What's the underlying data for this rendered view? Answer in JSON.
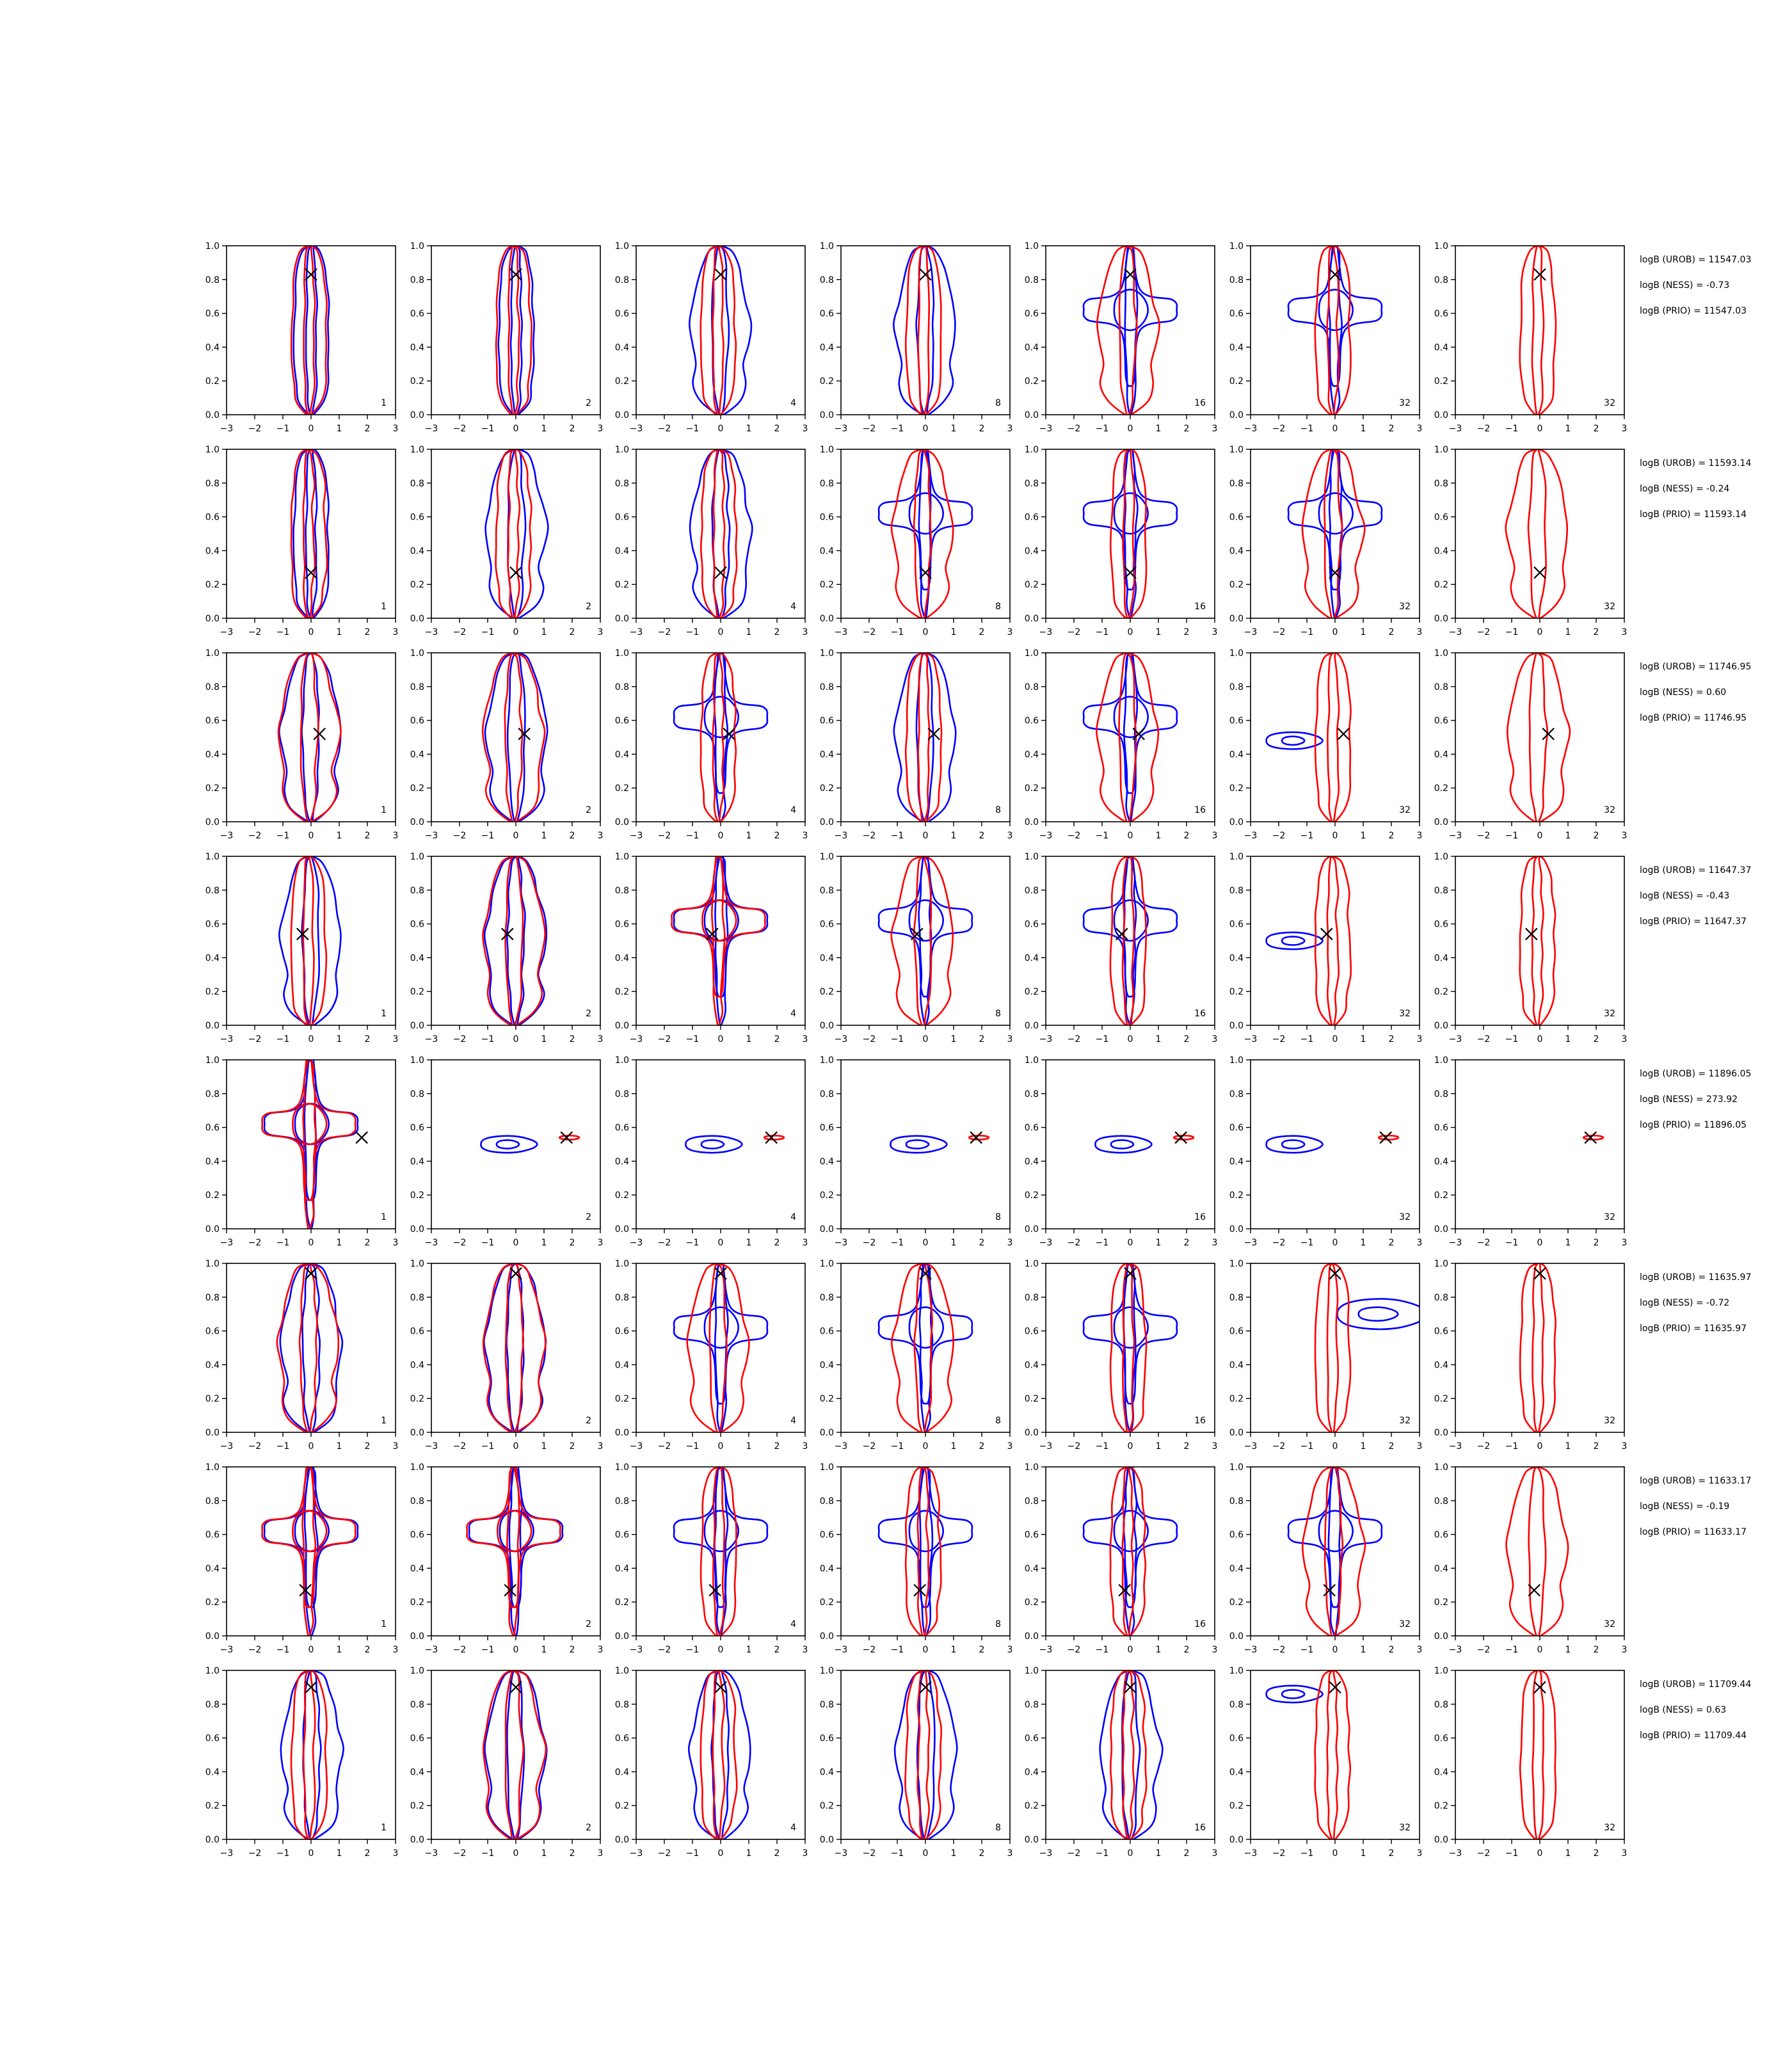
{
  "figure": {
    "xticks": [
      "−3",
      "−2",
      "−1",
      "0",
      "1",
      "2",
      "3"
    ],
    "yticks": [
      "0.0",
      "0.2",
      "0.4",
      "0.6",
      "0.8",
      "1.0"
    ],
    "xlim": [
      -3,
      3
    ],
    "ylim": [
      0,
      1
    ],
    "colors": {
      "series_a": "#0000ff",
      "series_b": "#ff0000",
      "marker": "#000000",
      "axes": "#000000"
    },
    "marker_symbol": "×",
    "panel_labels": [
      "1",
      "2",
      "4",
      "8",
      "16",
      "32",
      "32"
    ]
  },
  "chart_data": {
    "type": "contour",
    "grid": {
      "rows": 8,
      "cols": 7
    },
    "rows": [
      {
        "marker": [
          0.0,
          0.83
        ],
        "stats": [
          "logB (UROB) = 11547.03",
          "logB (NESS) = -0.73",
          "logB (PRIO) = 11547.03"
        ],
        "panels": [
          {
            "label": "1",
            "a": "n",
            "b": "n"
          },
          {
            "label": "2",
            "a": "n",
            "b": "n"
          },
          {
            "label": "4",
            "a": "m",
            "b": "n"
          },
          {
            "label": "8",
            "a": "m",
            "b": "n"
          },
          {
            "label": "16",
            "a": "x",
            "b": "m"
          },
          {
            "label": "32",
            "a": "x",
            "b": "n"
          },
          {
            "label": "32",
            "a": "",
            "b": "n"
          }
        ]
      },
      {
        "marker": [
          0.0,
          0.27
        ],
        "stats": [
          "logB (UROB) = 11593.14",
          "logB (NESS) = -0.24",
          "logB (PRIO) = 11593.14"
        ],
        "panels": [
          {
            "label": "1",
            "a": "n",
            "b": "n"
          },
          {
            "label": "2",
            "a": "m",
            "b": "n"
          },
          {
            "label": "4",
            "a": "m",
            "b": "n"
          },
          {
            "label": "8",
            "a": "x",
            "b": "m"
          },
          {
            "label": "16",
            "a": "x",
            "b": "n"
          },
          {
            "label": "32",
            "a": "x",
            "b": "m"
          },
          {
            "label": "32",
            "a": "",
            "b": "m"
          }
        ]
      },
      {
        "marker": [
          0.3,
          0.52
        ],
        "stats": [
          "logB (UROB) = 11746.95",
          "logB (NESS) = 0.60",
          "logB (PRIO) = 11746.95"
        ],
        "panels": [
          {
            "label": "1",
            "a": "m",
            "b": "m"
          },
          {
            "label": "2",
            "a": "m",
            "b": "m"
          },
          {
            "label": "4",
            "a": "x",
            "b": "n"
          },
          {
            "label": "8",
            "a": "m",
            "b": "n"
          },
          {
            "label": "16",
            "a": "x",
            "b": "m"
          },
          {
            "label": "32",
            "a": "bl",
            "b": "n"
          },
          {
            "label": "32",
            "a": "",
            "b": "m"
          }
        ]
      },
      {
        "marker": [
          -0.3,
          0.54
        ],
        "stats": [
          "logB (UROB) = 11647.37",
          "logB (NESS) = -0.43",
          "logB (PRIO) = 11647.37"
        ],
        "panels": [
          {
            "label": "1",
            "a": "m",
            "b": "n"
          },
          {
            "label": "2",
            "a": "m",
            "b": "m"
          },
          {
            "label": "4",
            "a": "x",
            "b": "x"
          },
          {
            "label": "8",
            "a": "x",
            "b": "m"
          },
          {
            "label": "16",
            "a": "x",
            "b": "n"
          },
          {
            "label": "32",
            "a": "bl",
            "b": "n"
          },
          {
            "label": "32",
            "a": "",
            "b": "n"
          }
        ]
      },
      {
        "marker": [
          1.8,
          0.54
        ],
        "stats": [
          "logB (UROB) = 11896.05",
          "logB (NESS) = 273.92",
          "logB (PRIO) = 11896.05"
        ],
        "panels": [
          {
            "label": "1",
            "a": "x",
            "b": "x"
          },
          {
            "label": "2",
            "a": "bl",
            "b": "t"
          },
          {
            "label": "4",
            "a": "bl",
            "b": "t"
          },
          {
            "label": "8",
            "a": "bl",
            "b": "t"
          },
          {
            "label": "16",
            "a": "bl",
            "b": "t"
          },
          {
            "label": "32",
            "a": "bl",
            "b": "t"
          },
          {
            "label": "32",
            "a": "",
            "b": "t"
          }
        ]
      },
      {
        "marker": [
          0.0,
          0.94
        ],
        "stats": [
          "logB (UROB) = 11635.97",
          "logB (NESS) = -0.72",
          "logB (PRIO) = 11635.97"
        ],
        "panels": [
          {
            "label": "1",
            "a": "m",
            "b": "m"
          },
          {
            "label": "2",
            "a": "m",
            "b": "m"
          },
          {
            "label": "4",
            "a": "x",
            "b": "m"
          },
          {
            "label": "8",
            "a": "x",
            "b": "m"
          },
          {
            "label": "16",
            "a": "x",
            "b": "n"
          },
          {
            "label": "32",
            "a": "br",
            "b": "n"
          },
          {
            "label": "32",
            "a": "",
            "b": "n"
          }
        ]
      },
      {
        "marker": [
          -0.2,
          0.27
        ],
        "stats": [
          "logB (UROB) = 11633.17",
          "logB (NESS) = -0.19",
          "logB (PRIO) = 11633.17"
        ],
        "panels": [
          {
            "label": "1",
            "a": "x",
            "b": "x"
          },
          {
            "label": "2",
            "a": "x",
            "b": "x"
          },
          {
            "label": "4",
            "a": "x",
            "b": "n"
          },
          {
            "label": "8",
            "a": "x",
            "b": "n"
          },
          {
            "label": "16",
            "a": "x",
            "b": "n"
          },
          {
            "label": "32",
            "a": "x",
            "b": "m"
          },
          {
            "label": "32",
            "a": "",
            "b": "m"
          }
        ]
      },
      {
        "marker": [
          0.0,
          0.9
        ],
        "stats": [
          "logB (UROB) = 11709.44",
          "logB (NESS) = 0.63",
          "logB (PRIO) = 11709.44"
        ],
        "panels": [
          {
            "label": "1",
            "a": "m",
            "b": "n"
          },
          {
            "label": "2",
            "a": "m",
            "b": "m"
          },
          {
            "label": "4",
            "a": "m",
            "b": "n"
          },
          {
            "label": "8",
            "a": "m",
            "b": "n"
          },
          {
            "label": "16",
            "a": "m",
            "b": "n"
          },
          {
            "label": "32",
            "a": "bl",
            "b": "n"
          },
          {
            "label": "32",
            "a": "",
            "b": "n"
          }
        ]
      }
    ]
  }
}
